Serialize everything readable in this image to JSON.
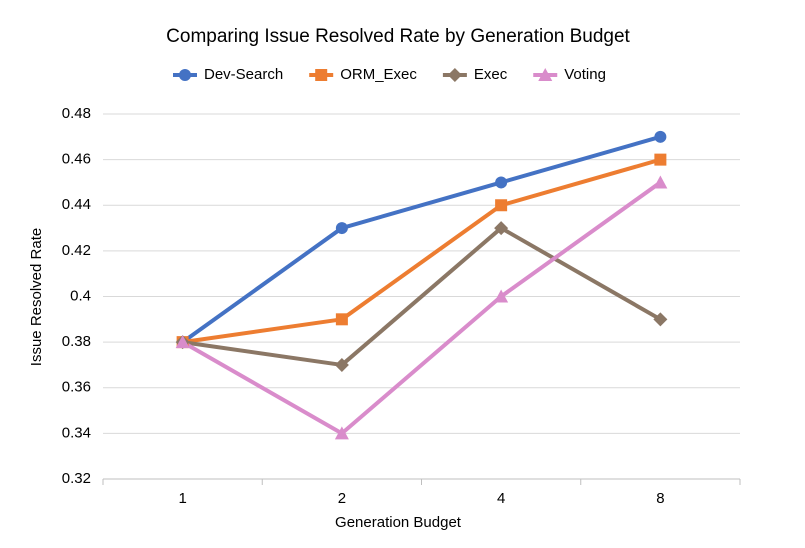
{
  "chart_data": {
    "type": "line",
    "title": "Comparing Issue Resolved Rate by Generation Budget",
    "x_label": "Generation Budget",
    "y_label": "Issue Resolved Rate",
    "categories": [
      "1",
      "2",
      "4",
      "8"
    ],
    "series": [
      {
        "name": "Dev-Search",
        "color": "#4472c4",
        "marker": "circle",
        "values": [
          0.38,
          0.43,
          0.45,
          0.47
        ]
      },
      {
        "name": "ORM_Exec",
        "color": "#ed7d31",
        "marker": "square",
        "values": [
          0.38,
          0.39,
          0.44,
          0.46
        ]
      },
      {
        "name": "Exec",
        "color": "#8b7765",
        "marker": "diamond",
        "values": [
          0.38,
          0.37,
          0.43,
          0.39
        ]
      },
      {
        "name": "Voting",
        "color": "#d98ccb",
        "marker": "triangle",
        "values": [
          0.38,
          0.34,
          0.4,
          0.45
        ]
      }
    ],
    "ylim": [
      0.32,
      0.48
    ],
    "yticks": [
      0.32,
      0.34,
      0.36,
      0.38,
      0.4,
      0.42,
      0.44,
      0.46,
      0.48
    ],
    "grid": true,
    "legend": "top"
  }
}
